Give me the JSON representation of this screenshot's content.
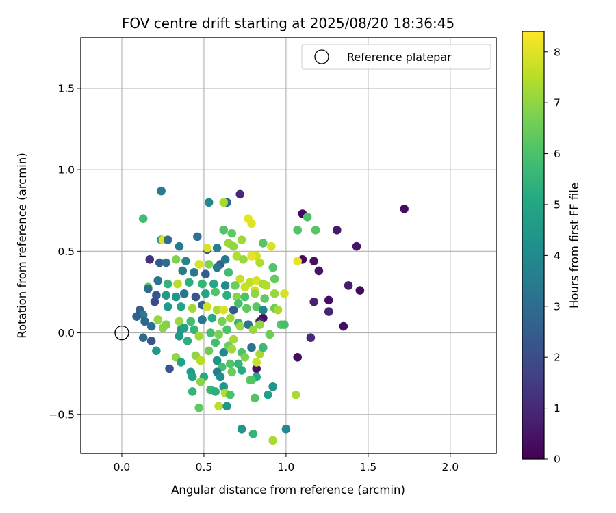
{
  "chart_data": {
    "type": "scatter",
    "title": "FOV centre drift starting at 2025/08/20 18:36:45",
    "xlabel": "Angular distance from reference (arcmin)",
    "ylabel": "Rotation from reference (arcmin)",
    "xlim": [
      -0.25,
      2.28
    ],
    "ylim": [
      -0.74,
      1.81
    ],
    "xticks": [
      0.0,
      0.5,
      1.0,
      1.5,
      2.0
    ],
    "xtick_labels": [
      "0.0",
      "0.5",
      "1.0",
      "1.5",
      "2.0"
    ],
    "yticks": [
      -0.5,
      0.0,
      0.5,
      1.0,
      1.5
    ],
    "ytick_labels": [
      "−0.5",
      "0.0",
      "0.5",
      "1.0",
      "1.5"
    ],
    "grid": true,
    "legend": {
      "location": "top-right",
      "entries": [
        {
          "label": "Reference platepar",
          "marker": "open-circle",
          "x": 0.0,
          "y": 0.0
        }
      ]
    },
    "colorbar": {
      "label": "Hours from first FF file",
      "colormap": "viridis",
      "range": [
        0,
        8.4
      ],
      "ticks": [
        0,
        1,
        2,
        3,
        4,
        5,
        6,
        7,
        8
      ],
      "tick_labels": [
        "0",
        "1",
        "2",
        "3",
        "4",
        "5",
        "6",
        "7",
        "8"
      ]
    },
    "points": [
      [
        1.72,
        0.76,
        0.3
      ],
      [
        1.1,
        0.73,
        0.2
      ],
      [
        1.43,
        0.53,
        0.5
      ],
      [
        1.31,
        0.63,
        0.6
      ],
      [
        1.17,
        0.44,
        0.4
      ],
      [
        1.2,
        0.38,
        0.5
      ],
      [
        1.1,
        0.45,
        0.2
      ],
      [
        1.38,
        0.29,
        0.7
      ],
      [
        1.45,
        0.26,
        0.2
      ],
      [
        1.26,
        0.2,
        0.3
      ],
      [
        1.17,
        0.19,
        0.8
      ],
      [
        1.26,
        0.13,
        0.9
      ],
      [
        1.35,
        0.04,
        0.3
      ],
      [
        1.15,
        -0.03,
        1.0
      ],
      [
        1.07,
        -0.15,
        0.3
      ],
      [
        0.72,
        0.85,
        1.0
      ],
      [
        0.82,
        -0.22,
        0.4
      ],
      [
        0.86,
        0.09,
        0.3
      ],
      [
        0.84,
        0.07,
        0.8
      ],
      [
        0.17,
        0.45,
        1.2
      ],
      [
        0.24,
        0.87,
        3.5
      ],
      [
        0.53,
        0.8,
        3.9
      ],
      [
        0.64,
        0.8,
        2.8
      ],
      [
        0.62,
        0.8,
        7.3
      ],
      [
        0.13,
        0.7,
        5.8
      ],
      [
        1.13,
        0.71,
        6.0
      ],
      [
        1.07,
        0.63,
        6.1
      ],
      [
        1.18,
        0.63,
        6.2
      ],
      [
        0.67,
        0.61,
        6.3
      ],
      [
        0.62,
        0.63,
        6.1
      ],
      [
        0.77,
        0.7,
        8.1
      ],
      [
        0.79,
        0.67,
        8.0
      ],
      [
        0.24,
        0.57,
        4.5
      ],
      [
        0.25,
        0.57,
        8.0
      ],
      [
        0.28,
        0.57,
        3.0
      ],
      [
        0.35,
        0.53,
        3.4
      ],
      [
        0.46,
        0.59,
        3.2
      ],
      [
        0.52,
        0.51,
        2.2
      ],
      [
        0.52,
        0.52,
        7.9
      ],
      [
        0.58,
        0.52,
        3.6
      ],
      [
        0.65,
        0.55,
        7.2
      ],
      [
        0.68,
        0.53,
        7.0
      ],
      [
        0.73,
        0.57,
        7.2
      ],
      [
        0.82,
        0.47,
        7.8
      ],
      [
        0.86,
        0.55,
        6.2
      ],
      [
        0.91,
        0.53,
        7.9
      ],
      [
        1.07,
        0.44,
        8.1
      ],
      [
        0.33,
        0.45,
        6.8
      ],
      [
        0.39,
        0.44,
        3.9
      ],
      [
        0.47,
        0.42,
        7.9
      ],
      [
        0.53,
        0.42,
        6.8
      ],
      [
        0.6,
        0.42,
        2.5
      ],
      [
        0.63,
        0.45,
        3.4
      ],
      [
        0.7,
        0.47,
        7.4
      ],
      [
        0.74,
        0.45,
        7.1
      ],
      [
        0.79,
        0.47,
        8.1
      ],
      [
        0.84,
        0.43,
        7.4
      ],
      [
        0.23,
        0.43,
        2.5
      ],
      [
        0.27,
        0.43,
        3.0
      ],
      [
        0.37,
        0.38,
        3.5
      ],
      [
        0.44,
        0.37,
        3.4
      ],
      [
        0.51,
        0.36,
        2.5
      ],
      [
        0.58,
        0.4,
        3.3
      ],
      [
        0.65,
        0.37,
        5.8
      ],
      [
        0.72,
        0.33,
        7.7
      ],
      [
        0.78,
        0.31,
        7.6
      ],
      [
        0.82,
        0.32,
        7.9
      ],
      [
        0.86,
        0.3,
        7.3
      ],
      [
        0.92,
        0.4,
        6.1
      ],
      [
        0.93,
        0.33,
        6.4
      ],
      [
        0.16,
        0.28,
        6.3
      ],
      [
        0.22,
        0.32,
        3.3
      ],
      [
        0.28,
        0.3,
        5.5
      ],
      [
        0.34,
        0.3,
        7.5
      ],
      [
        0.41,
        0.31,
        5.3
      ],
      [
        0.49,
        0.3,
        5.5
      ],
      [
        0.56,
        0.3,
        5.0
      ],
      [
        0.63,
        0.29,
        4.1
      ],
      [
        0.69,
        0.29,
        6.5
      ],
      [
        0.75,
        0.28,
        7.7
      ],
      [
        0.81,
        0.26,
        7.8
      ],
      [
        0.88,
        0.29,
        7.4
      ],
      [
        0.99,
        0.24,
        7.9
      ],
      [
        0.16,
        0.27,
        3.0
      ],
      [
        0.21,
        0.23,
        2.3
      ],
      [
        0.27,
        0.23,
        4.6
      ],
      [
        0.33,
        0.22,
        4.4
      ],
      [
        0.38,
        0.24,
        3.3
      ],
      [
        0.45,
        0.22,
        2.3
      ],
      [
        0.51,
        0.24,
        5.0
      ],
      [
        0.57,
        0.25,
        6.1
      ],
      [
        0.64,
        0.23,
        5.3
      ],
      [
        0.7,
        0.22,
        6.9
      ],
      [
        0.75,
        0.22,
        6.0
      ],
      [
        0.81,
        0.24,
        7.0
      ],
      [
        0.87,
        0.21,
        6.3
      ],
      [
        0.93,
        0.24,
        7.1
      ],
      [
        0.11,
        0.14,
        2.6
      ],
      [
        0.13,
        0.11,
        3.5
      ],
      [
        0.2,
        0.19,
        1.9
      ],
      [
        0.28,
        0.16,
        4.5
      ],
      [
        0.36,
        0.16,
        4.9
      ],
      [
        0.43,
        0.15,
        7.2
      ],
      [
        0.49,
        0.17,
        2.6
      ],
      [
        0.52,
        0.16,
        7.8
      ],
      [
        0.58,
        0.14,
        7.3
      ],
      [
        0.62,
        0.14,
        7.9
      ],
      [
        0.68,
        0.14,
        2.5
      ],
      [
        0.71,
        0.18,
        5.9
      ],
      [
        0.76,
        0.15,
        6.3
      ],
      [
        0.82,
        0.16,
        6.2
      ],
      [
        0.86,
        0.14,
        3.8
      ],
      [
        0.93,
        0.15,
        6.5
      ],
      [
        0.95,
        0.14,
        7.3
      ],
      [
        0.09,
        0.1,
        2.6
      ],
      [
        0.14,
        0.07,
        2.8
      ],
      [
        0.18,
        0.04,
        3.1
      ],
      [
        0.22,
        0.08,
        7.1
      ],
      [
        0.27,
        0.05,
        6.8
      ],
      [
        0.35,
        0.07,
        7.1
      ],
      [
        0.42,
        0.07,
        5.8
      ],
      [
        0.49,
        0.08,
        3.3
      ],
      [
        0.55,
        0.09,
        5.2
      ],
      [
        0.61,
        0.07,
        6.7
      ],
      [
        0.66,
        0.09,
        7.2
      ],
      [
        0.71,
        0.06,
        5.5
      ],
      [
        0.77,
        0.05,
        3.2
      ],
      [
        0.84,
        0.05,
        7.0
      ],
      [
        0.97,
        0.05,
        6.1
      ],
      [
        0.99,
        0.05,
        5.9
      ],
      [
        0.13,
        -0.03,
        2.9
      ],
      [
        0.18,
        -0.05,
        2.2
      ],
      [
        0.25,
        0.03,
        6.9
      ],
      [
        0.36,
        0.02,
        4.3
      ],
      [
        0.44,
        0.02,
        5.5
      ],
      [
        0.47,
        -0.02,
        7.2
      ],
      [
        0.54,
        0.0,
        5.9
      ],
      [
        0.59,
        -0.01,
        6.7
      ],
      [
        0.64,
        0.02,
        6.0
      ],
      [
        0.68,
        -0.04,
        7.3
      ],
      [
        0.72,
        0.04,
        7.1
      ],
      [
        0.8,
        0.02,
        7.1
      ],
      [
        0.9,
        -0.01,
        6.5
      ],
      [
        0.21,
        -0.11,
        4.6
      ],
      [
        0.35,
        -0.02,
        4.6
      ],
      [
        0.4,
        -0.05,
        5.3
      ],
      [
        0.53,
        -0.11,
        6.5
      ],
      [
        0.57,
        -0.06,
        5.8
      ],
      [
        0.62,
        -0.12,
        4.0
      ],
      [
        0.65,
        -0.08,
        6.5
      ],
      [
        0.67,
        -0.1,
        7.2
      ],
      [
        0.73,
        -0.12,
        6.0
      ],
      [
        0.79,
        -0.09,
        3.2
      ],
      [
        0.84,
        -0.13,
        7.3
      ],
      [
        0.86,
        -0.09,
        5.7
      ],
      [
        0.33,
        -0.15,
        7.0
      ],
      [
        0.36,
        -0.18,
        4.9
      ],
      [
        0.45,
        -0.14,
        7.0
      ],
      [
        0.48,
        -0.17,
        7.5
      ],
      [
        0.58,
        -0.17,
        4.3
      ],
      [
        0.61,
        -0.21,
        5.9
      ],
      [
        0.66,
        -0.19,
        6.1
      ],
      [
        0.71,
        -0.19,
        5.5
      ],
      [
        0.75,
        -0.15,
        6.8
      ],
      [
        0.82,
        -0.18,
        7.7
      ],
      [
        0.29,
        -0.22,
        2.3
      ],
      [
        0.42,
        -0.24,
        4.6
      ],
      [
        0.43,
        -0.27,
        4.9
      ],
      [
        0.5,
        -0.27,
        5.1
      ],
      [
        0.58,
        -0.24,
        3.5
      ],
      [
        0.6,
        -0.27,
        4.2
      ],
      [
        0.67,
        -0.24,
        6.5
      ],
      [
        0.73,
        -0.23,
        5.2
      ],
      [
        0.78,
        -0.29,
        6.5
      ],
      [
        0.82,
        -0.27,
        5.1
      ],
      [
        0.48,
        -0.3,
        6.9
      ],
      [
        0.54,
        -0.35,
        5.6
      ],
      [
        0.57,
        -0.36,
        5.3
      ],
      [
        0.62,
        -0.33,
        4.5
      ],
      [
        0.63,
        -0.37,
        7.4
      ],
      [
        0.66,
        -0.38,
        6.0
      ],
      [
        0.79,
        -0.29,
        6.1
      ],
      [
        0.89,
        -0.38,
        4.8
      ],
      [
        0.92,
        -0.33,
        4.4
      ],
      [
        0.43,
        -0.36,
        5.5
      ],
      [
        0.47,
        -0.46,
        6.3
      ],
      [
        0.59,
        -0.45,
        7.6
      ],
      [
        0.64,
        -0.45,
        4.4
      ],
      [
        0.81,
        -0.4,
        6.1
      ],
      [
        1.06,
        -0.38,
        7.3
      ],
      [
        0.73,
        -0.59,
        4.4
      ],
      [
        0.8,
        -0.62,
        5.5
      ],
      [
        1.0,
        -0.59,
        4.0
      ],
      [
        0.92,
        -0.66,
        7.3
      ],
      [
        0.38,
        0.03,
        4.8
      ]
    ]
  }
}
